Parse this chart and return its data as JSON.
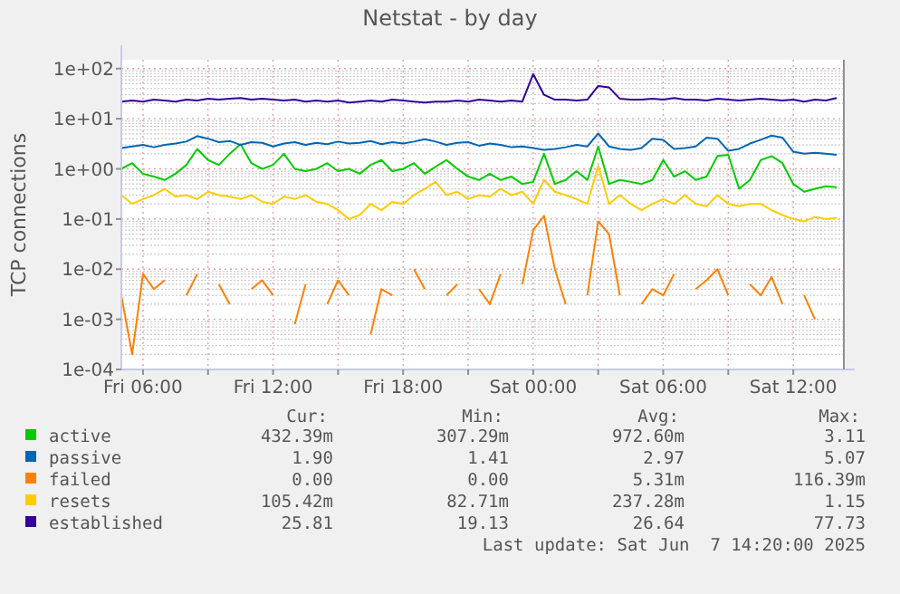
{
  "chart_data": {
    "type": "line",
    "title": "Netstat - by day",
    "ylabel": "TCP connections",
    "log": "y",
    "grid": true,
    "legend": "bottom",
    "marker": "none",
    "line_style": "solid",
    "xlim": [
      "2025-06-06T05:00",
      "2025-06-07T14:20"
    ],
    "xticks": [
      {
        "value": "2025-06-06T06:00",
        "label": "Fri 06:00"
      },
      {
        "value": "2025-06-06T09:00",
        "label": null
      },
      {
        "value": "2025-06-06T12:00",
        "label": "Fri 12:00"
      },
      {
        "value": "2025-06-06T15:00",
        "label": null
      },
      {
        "value": "2025-06-06T18:00",
        "label": "Fri 18:00"
      },
      {
        "value": "2025-06-06T21:00",
        "label": null
      },
      {
        "value": "2025-06-07T00:00",
        "label": "Sat 00:00"
      },
      {
        "value": "2025-06-07T03:00",
        "label": null
      },
      {
        "value": "2025-06-07T06:00",
        "label": "Sat 06:00"
      },
      {
        "value": "2025-06-07T09:00",
        "label": null
      },
      {
        "value": "2025-06-07T12:00",
        "label": "Sat 12:00"
      }
    ],
    "ylim": [
      0.0001,
      150
    ],
    "yticks": [
      {
        "value": 0.0001,
        "label": "1e-04"
      },
      {
        "value": 0.001,
        "label": "1e-03"
      },
      {
        "value": 0.01,
        "label": "1e-02"
      },
      {
        "value": 0.1,
        "label": "1e-01"
      },
      {
        "value": 1,
        "label": "1e+00"
      },
      {
        "value": 10,
        "label": "1e+01"
      },
      {
        "value": 100,
        "label": "1e+02"
      }
    ],
    "x": [
      "2025-06-06T05:00",
      "2025-06-06T05:30",
      "2025-06-06T06:00",
      "2025-06-06T06:30",
      "2025-06-06T07:00",
      "2025-06-06T07:30",
      "2025-06-06T08:00",
      "2025-06-06T08:30",
      "2025-06-06T09:00",
      "2025-06-06T09:30",
      "2025-06-06T10:00",
      "2025-06-06T10:30",
      "2025-06-06T11:00",
      "2025-06-06T11:30",
      "2025-06-06T12:00",
      "2025-06-06T12:30",
      "2025-06-06T13:00",
      "2025-06-06T13:30",
      "2025-06-06T14:00",
      "2025-06-06T14:30",
      "2025-06-06T15:00",
      "2025-06-06T15:30",
      "2025-06-06T16:00",
      "2025-06-06T16:30",
      "2025-06-06T17:00",
      "2025-06-06T17:30",
      "2025-06-06T18:00",
      "2025-06-06T18:30",
      "2025-06-06T19:00",
      "2025-06-06T19:30",
      "2025-06-06T20:00",
      "2025-06-06T20:30",
      "2025-06-06T21:00",
      "2025-06-06T21:30",
      "2025-06-06T22:00",
      "2025-06-06T22:30",
      "2025-06-06T23:00",
      "2025-06-06T23:30",
      "2025-06-07T00:00",
      "2025-06-07T00:30",
      "2025-06-07T01:00",
      "2025-06-07T01:30",
      "2025-06-07T02:00",
      "2025-06-07T02:30",
      "2025-06-07T03:00",
      "2025-06-07T03:30",
      "2025-06-07T04:00",
      "2025-06-07T04:30",
      "2025-06-07T05:00",
      "2025-06-07T05:30",
      "2025-06-07T06:00",
      "2025-06-07T06:30",
      "2025-06-07T07:00",
      "2025-06-07T07:30",
      "2025-06-07T08:00",
      "2025-06-07T08:30",
      "2025-06-07T09:00",
      "2025-06-07T09:30",
      "2025-06-07T10:00",
      "2025-06-07T10:30",
      "2025-06-07T11:00",
      "2025-06-07T11:30",
      "2025-06-07T12:00",
      "2025-06-07T12:30",
      "2025-06-07T13:00",
      "2025-06-07T13:30",
      "2025-06-07T14:00"
    ],
    "series": [
      {
        "name": "active",
        "color": "#00cc00",
        "values": [
          1.0,
          1.3,
          0.8,
          0.7,
          0.6,
          0.8,
          1.2,
          2.5,
          1.5,
          1.2,
          2.0,
          3.11,
          1.3,
          1.0,
          1.2,
          2.0,
          1.0,
          0.9,
          1.0,
          1.3,
          0.9,
          1.0,
          0.8,
          1.2,
          1.5,
          0.9,
          1.0,
          1.3,
          0.8,
          1.1,
          1.5,
          1.0,
          0.7,
          0.6,
          0.8,
          0.6,
          0.7,
          0.5,
          0.55,
          2.0,
          0.5,
          0.6,
          0.9,
          0.6,
          2.8,
          0.5,
          0.6,
          0.55,
          0.5,
          0.6,
          1.5,
          0.7,
          0.9,
          0.6,
          0.7,
          1.8,
          1.9,
          0.4,
          0.6,
          1.5,
          1.8,
          1.3,
          0.5,
          0.35,
          0.4,
          0.45,
          0.43
        ]
      },
      {
        "name": "passive",
        "color": "#0066b3",
        "values": [
          2.6,
          2.8,
          3.0,
          2.7,
          3.0,
          3.2,
          3.5,
          4.5,
          4.0,
          3.4,
          3.6,
          3.0,
          3.4,
          3.3,
          2.8,
          3.2,
          3.4,
          3.0,
          3.3,
          3.1,
          3.5,
          3.2,
          3.3,
          3.6,
          3.1,
          3.4,
          3.2,
          3.5,
          3.9,
          3.5,
          3.0,
          3.3,
          3.4,
          2.9,
          3.2,
          3.0,
          2.7,
          2.8,
          2.6,
          2.4,
          2.5,
          2.7,
          3.0,
          2.8,
          5.07,
          2.8,
          2.5,
          2.4,
          2.6,
          4.0,
          3.8,
          2.5,
          2.6,
          2.8,
          4.2,
          4.0,
          2.3,
          2.5,
          3.2,
          3.8,
          4.6,
          4.2,
          2.2,
          2.0,
          2.1,
          2.0,
          1.9
        ]
      },
      {
        "name": "failed",
        "color": "#ff8000",
        "values": [
          0.003,
          0.0002,
          0.008,
          0.004,
          0.006,
          null,
          0.003,
          0.008,
          null,
          0.005,
          0.002,
          null,
          0.004,
          0.006,
          0.003,
          null,
          0.0008,
          0.005,
          null,
          0.002,
          0.006,
          0.003,
          null,
          0.0005,
          0.004,
          0.003,
          null,
          0.01,
          0.004,
          null,
          0.003,
          0.005,
          null,
          0.004,
          0.002,
          0.008,
          null,
          0.005,
          0.06,
          0.116,
          0.01,
          0.002,
          null,
          0.003,
          0.09,
          0.05,
          0.003,
          null,
          0.002,
          0.004,
          0.003,
          0.008,
          null,
          0.004,
          0.006,
          0.01,
          0.003,
          null,
          0.005,
          0.003,
          0.007,
          0.002,
          null,
          0.003,
          0.001,
          null,
          null
        ]
      },
      {
        "name": "resets",
        "color": "#ffcc00",
        "values": [
          0.3,
          0.2,
          0.25,
          0.3,
          0.4,
          0.28,
          0.3,
          0.25,
          0.35,
          0.3,
          0.28,
          0.25,
          0.3,
          0.22,
          0.2,
          0.28,
          0.25,
          0.3,
          0.22,
          0.2,
          0.15,
          0.1,
          0.12,
          0.2,
          0.15,
          0.22,
          0.2,
          0.3,
          0.4,
          0.55,
          0.3,
          0.35,
          0.25,
          0.3,
          0.28,
          0.4,
          0.3,
          0.35,
          0.2,
          0.6,
          0.35,
          0.3,
          0.25,
          0.2,
          1.15,
          0.2,
          0.3,
          0.2,
          0.15,
          0.2,
          0.25,
          0.2,
          0.3,
          0.2,
          0.18,
          0.3,
          0.2,
          0.18,
          0.2,
          0.2,
          0.15,
          0.12,
          0.1,
          0.09,
          0.11,
          0.1,
          0.105
        ]
      },
      {
        "name": "established",
        "color": "#330099",
        "values": [
          22,
          23,
          22,
          24,
          23,
          22,
          24,
          23,
          25,
          24,
          25,
          26,
          24,
          25,
          24,
          23,
          24,
          22,
          23,
          22,
          23,
          21,
          22,
          23,
          22,
          24,
          23,
          22,
          21,
          22,
          22,
          23,
          22,
          24,
          23,
          22,
          23,
          22,
          77.73,
          30,
          24,
          24,
          23,
          24,
          45,
          42,
          25,
          24,
          24,
          25,
          24,
          26,
          24,
          24,
          23,
          25,
          24,
          23,
          24,
          25,
          24,
          23,
          24,
          22,
          24,
          23,
          25.81
        ]
      }
    ],
    "annotations": [
      "Cur:",
      "Min:",
      "Avg:",
      "Max:",
      "432.39m",
      "307.29m",
      "972.60m",
      "3.11",
      "1.90",
      "1.41",
      "2.97",
      "5.07",
      "0.00",
      "0.00",
      "5.31m",
      "116.39m",
      "105.42m",
      "82.71m",
      "237.28m",
      "1.15",
      "25.81",
      "19.13",
      "26.64",
      "77.73",
      "Last update: Sat Jun  7 14:20:00 2025"
    ]
  }
}
